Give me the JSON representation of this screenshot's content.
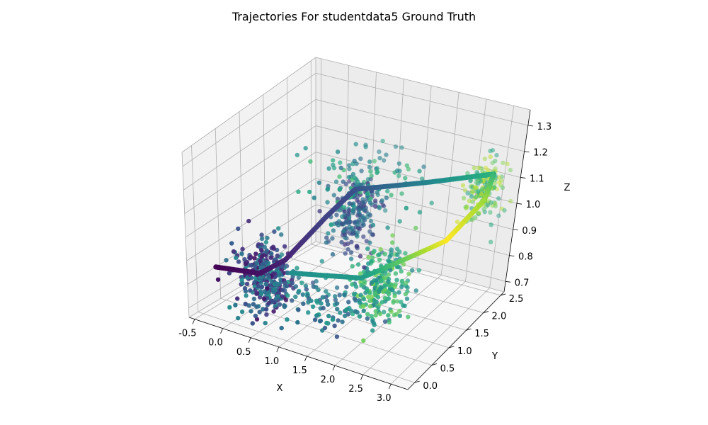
{
  "chart_data": {
    "type": "scatter",
    "projection": "3d",
    "title": "Trajectories For studentdata5 Ground Truth",
    "xlabel": "X",
    "ylabel": "Y",
    "zlabel": "Z",
    "xlim": [
      -0.6,
      3.3
    ],
    "ylim": [
      -0.2,
      2.6
    ],
    "zlim": [
      0.66,
      1.36
    ],
    "xticks": [
      "-0.5",
      "0.0",
      "0.5",
      "1.0",
      "1.5",
      "2.0",
      "2.5",
      "3.0"
    ],
    "yticks": [
      "0.0",
      "0.5",
      "1.0",
      "1.5",
      "2.0",
      "2.5"
    ],
    "zticks": [
      "0.7",
      "0.8",
      "0.9",
      "1.0",
      "1.1",
      "1.2",
      "1.3"
    ],
    "colormap": "viridis",
    "grid": true,
    "legend": "none",
    "trajectory": [
      {
        "x": -0.5,
        "y": 0.3,
        "z": 0.82,
        "t": 0.0
      },
      {
        "x": 0.3,
        "y": 0.3,
        "z": 0.85,
        "t": 0.05
      },
      {
        "x": 0.6,
        "y": 0.5,
        "z": 0.9,
        "t": 0.1
      },
      {
        "x": 0.9,
        "y": 1.05,
        "z": 1.02,
        "t": 0.2
      },
      {
        "x": 1.15,
        "y": 1.4,
        "z": 1.1,
        "t": 0.25
      },
      {
        "x": 2.1,
        "y": 1.85,
        "z": 1.12,
        "t": 0.45
      },
      {
        "x": 3.0,
        "y": 2.3,
        "z": 1.14,
        "t": 0.65
      },
      {
        "x": 2.95,
        "y": 2.2,
        "z": 1.05,
        "t": 0.85
      },
      {
        "x": 2.75,
        "y": 1.55,
        "z": 0.97,
        "t": 1.0
      },
      {
        "x": 1.9,
        "y": 0.6,
        "z": 0.9,
        "t": 0.55
      },
      {
        "x": 0.8,
        "y": 0.35,
        "z": 0.88,
        "t": 0.5
      }
    ],
    "clusters": [
      {
        "cx": 0.4,
        "cy": 0.3,
        "cz": 0.85,
        "n": 320,
        "spread": [
          0.35,
          0.3,
          0.12
        ],
        "t": [
          0.05,
          0.5
        ]
      },
      {
        "cx": 1.2,
        "cy": 1.35,
        "cz": 1.02,
        "n": 220,
        "spread": [
          0.35,
          0.35,
          0.12
        ],
        "t": [
          0.15,
          0.5
        ]
      },
      {
        "cx": 2.1,
        "cy": 0.9,
        "cz": 0.86,
        "n": 230,
        "spread": [
          0.35,
          0.35,
          0.11
        ],
        "t": [
          0.45,
          0.8
        ]
      },
      {
        "cx": 2.9,
        "cy": 2.25,
        "cz": 1.08,
        "n": 170,
        "spread": [
          0.25,
          0.25,
          0.1
        ],
        "t": [
          0.55,
          0.95
        ]
      },
      {
        "cx": 1.5,
        "cy": 1.2,
        "cz": 1.18,
        "n": 90,
        "spread": [
          0.7,
          0.6,
          0.08
        ],
        "t": [
          0.4,
          0.7
        ]
      },
      {
        "cx": 1.3,
        "cy": 0.5,
        "cz": 0.78,
        "n": 110,
        "spread": [
          0.8,
          0.4,
          0.06
        ],
        "t": [
          0.25,
          0.55
        ]
      }
    ]
  }
}
